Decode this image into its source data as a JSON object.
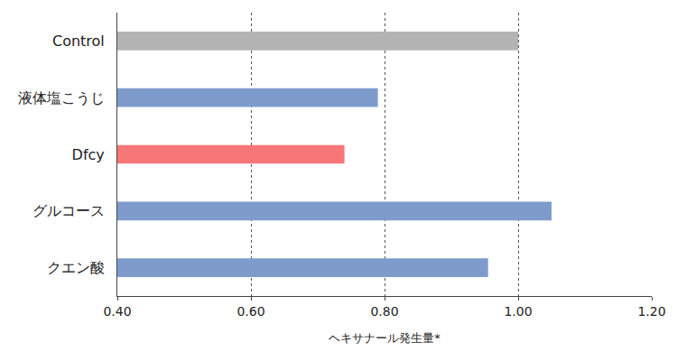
{
  "chart_data": {
    "type": "bar",
    "orientation": "horizontal",
    "categories": [
      "Control",
      "液体塩こうじ",
      "Dfcy",
      "グルコース",
      "クエン酸"
    ],
    "values": [
      1.0,
      0.79,
      0.74,
      1.05,
      0.955
    ],
    "colors": [
      "#b3b3b3",
      "#7f9bcc",
      "#f77779",
      "#7f9bcc",
      "#7f9bcc"
    ],
    "xlabel": "ヘキサナール発生量*",
    "xlim": [
      0.4,
      1.2
    ],
    "xticks": [
      {
        "value": 0.4,
        "label": "0.40"
      },
      {
        "value": 0.6,
        "label": "0.60"
      },
      {
        "value": 0.8,
        "label": "0.80"
      },
      {
        "value": 1.0,
        "label": "1.00"
      },
      {
        "value": 1.2,
        "label": "1.20"
      }
    ],
    "grid": true
  }
}
